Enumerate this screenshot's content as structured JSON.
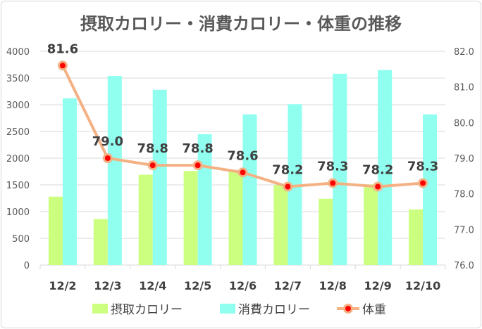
{
  "chart_data": {
    "type": "bar+line",
    "title": "摂取カロリー・消費カロリー・体重の推移",
    "categories": [
      "12/2",
      "12/3",
      "12/4",
      "12/5",
      "12/6",
      "12/7",
      "12/8",
      "12/9",
      "12/10"
    ],
    "series": [
      {
        "name": "摂取カロリー",
        "type": "bar",
        "axis": "left",
        "color": "#ccff80",
        "values": [
          1280,
          860,
          1690,
          1760,
          1760,
          1500,
          1240,
          1510,
          1040
        ]
      },
      {
        "name": "消費カロリー",
        "type": "bar",
        "axis": "left",
        "color": "#90fff0",
        "values": [
          3120,
          3540,
          3280,
          2450,
          2820,
          3010,
          3580,
          3650,
          2820
        ]
      },
      {
        "name": "体重",
        "type": "line",
        "axis": "right",
        "color": "#f4b183",
        "marker_color": "#ff0000",
        "values": [
          81.6,
          79.0,
          78.8,
          78.8,
          78.6,
          78.2,
          78.3,
          78.2,
          78.3
        ],
        "labels": [
          "81.6",
          "79.0",
          "78.8",
          "78.8",
          "78.6",
          "78.2",
          "78.3",
          "78.2",
          "78.3"
        ]
      }
    ],
    "ylim_left": [
      0,
      4000
    ],
    "yticks_left": [
      "0",
      "500",
      "1000",
      "1500",
      "2000",
      "2500",
      "3000",
      "3500",
      "4000"
    ],
    "ylim_right": [
      76.0,
      82.0
    ],
    "yticks_right": [
      "76.0",
      "77.0",
      "78.0",
      "79.0",
      "80.0",
      "81.0",
      "82.0"
    ],
    "grid": true,
    "legend": "bottom"
  }
}
